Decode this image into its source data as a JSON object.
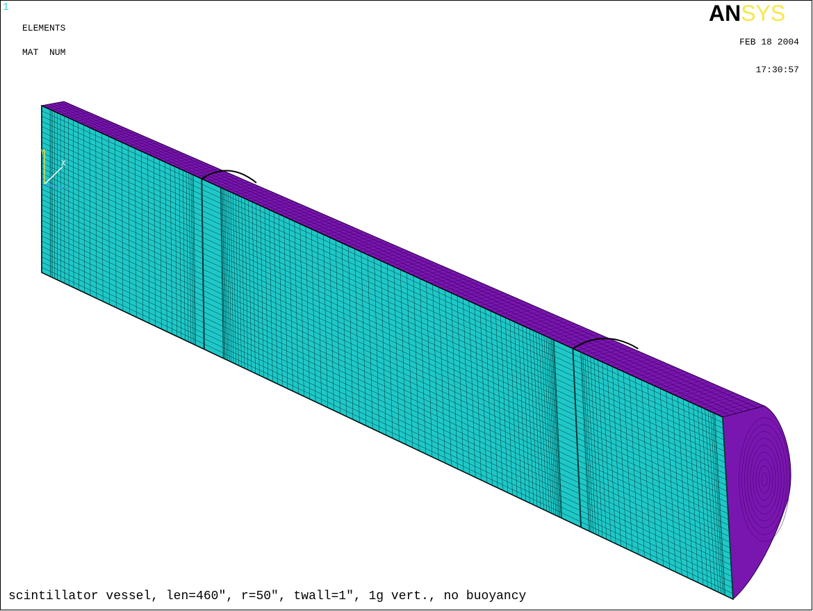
{
  "header": {
    "window_number": "1",
    "labels": [
      "ELEMENTS",
      "MAT  NUM"
    ],
    "logo": {
      "part1": "AN",
      "part2": "SYS"
    },
    "date": "FEB 18 2004",
    "time": "17:30:57"
  },
  "triad": {
    "y": "Y",
    "x": "X"
  },
  "caption": "scintillator vessel, len=460\", r=50\", twall=1\", 1g vert., no buoyancy"
}
